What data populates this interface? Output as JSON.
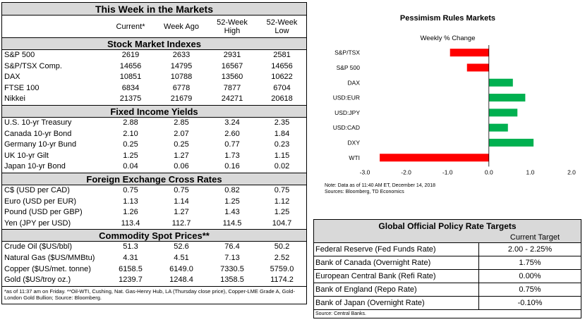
{
  "markets": {
    "title": "This Week in the Markets",
    "columns": [
      "",
      "Current*",
      "Week Ago",
      "52-Week\nHigh",
      "52-Week\nLow"
    ],
    "sections": [
      {
        "title": "Stock Market Indexes",
        "rows": [
          [
            "S&P 500",
            "2619",
            "2633",
            "2931",
            "2581"
          ],
          [
            "S&P/TSX Comp.",
            "14656",
            "14795",
            "16567",
            "14656"
          ],
          [
            "DAX",
            "10851",
            "10788",
            "13560",
            "10622"
          ],
          [
            "FTSE 100",
            "6834",
            "6778",
            "7877",
            "6704"
          ],
          [
            "Nikkei",
            "21375",
            "21679",
            "24271",
            "20618"
          ]
        ]
      },
      {
        "title": "Fixed Income Yields",
        "rows": [
          [
            "U.S. 10-yr Treasury",
            "2.88",
            "2.85",
            "3.24",
            "2.35"
          ],
          [
            "Canada 10-yr Bond",
            "2.10",
            "2.07",
            "2.60",
            "1.84"
          ],
          [
            "Germany 10-yr Bund",
            "0.25",
            "0.25",
            "0.77",
            "0.23"
          ],
          [
            "UK 10-yr Gilt",
            "1.25",
            "1.27",
            "1.73",
            "1.15"
          ],
          [
            "Japan 10-yr Bond",
            "0.04",
            "0.06",
            "0.16",
            "0.02"
          ]
        ]
      },
      {
        "title": "Foreign Exchange Cross Rates",
        "rows": [
          [
            "C$ (USD per CAD)",
            "0.75",
            "0.75",
            "0.82",
            "0.75"
          ],
          [
            "Euro (USD per EUR)",
            "1.13",
            "1.14",
            "1.25",
            "1.12"
          ],
          [
            "Pound (USD per GBP)",
            "1.26",
            "1.27",
            "1.43",
            "1.25"
          ],
          [
            "Yen (JPY per USD)",
            "113.4",
            "112.7",
            "114.5",
            "104.7"
          ]
        ]
      },
      {
        "title": "Commodity Spot Prices**",
        "rows": [
          [
            "Crude Oil ($US/bbl)",
            "51.3",
            "52.6",
            "76.4",
            "50.2"
          ],
          [
            "Natural Gas ($US/MMBtu)",
            "4.31",
            "4.51",
            "7.13",
            "2.52"
          ],
          [
            "Copper ($US/met. tonne)",
            "6158.5",
            "6149.0",
            "7330.5",
            "5759.0"
          ],
          [
            "Gold ($US/troy oz.)",
            "1239.7",
            "1248.4",
            "1358.5",
            "1174.2"
          ]
        ]
      }
    ],
    "footnote": "*as of 11:37 am on Friday. **Oil-WTI, Cushing, Nat. Gas-Henry Hub, LA (Thursday close price), Copper-LME Grade A, Gold-London Gold Bullion; Source: Bloomberg."
  },
  "chart_data": {
    "type": "bar",
    "orientation": "horizontal",
    "title": "Pessimism Rules Markets",
    "subtitle": "Weekly % Change",
    "categories": [
      "S&P/TSX",
      "S&P 500",
      "DAX",
      "USD:EUR",
      "USD:JPY",
      "USD:CAD",
      "DXY",
      "WTI"
    ],
    "values": [
      -0.94,
      -0.53,
      0.58,
      0.88,
      0.69,
      0.46,
      1.08,
      -2.64
    ],
    "colors": [
      "#ff0000",
      "#ff0000",
      "#00b050",
      "#00b050",
      "#00b050",
      "#00b050",
      "#00b050",
      "#ff0000"
    ],
    "xlim": [
      -3.0,
      2.0
    ],
    "xticks": [
      "-3.0",
      "-2.0",
      "-1.0",
      "0.0",
      "1.0",
      "2.0"
    ],
    "note_line1": "Note: Data as of   11:40 AM  ET,  December 14, 2018",
    "note_line2": "Sources: Bloomberg, TD Economics"
  },
  "policy": {
    "title": "Global Official Policy Rate Targets",
    "header": "Current Target",
    "rows": [
      [
        "Federal Reserve (Fed Funds Rate)",
        "2.00 - 2.25%"
      ],
      [
        "Bank of Canada (Overnight Rate)",
        "1.75%"
      ],
      [
        "European Central Bank (Refi Rate)",
        "0.00%"
      ],
      [
        "Bank of England (Repo Rate)",
        "0.75%"
      ],
      [
        "Bank of Japan (Overnight Rate)",
        "-0.10%"
      ]
    ],
    "source": "Source: Central Banks."
  }
}
